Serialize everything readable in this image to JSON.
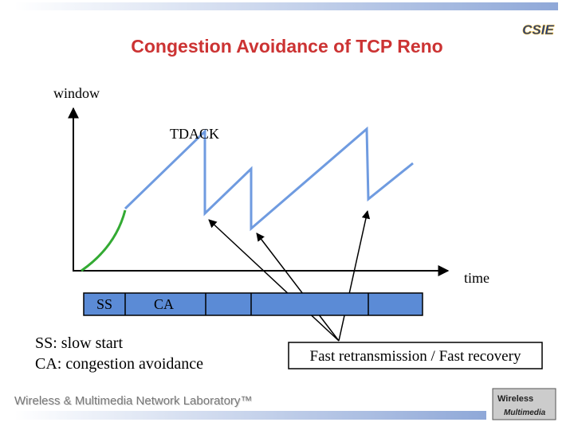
{
  "title": "Congestion Avoidance of TCP Reno",
  "axes": {
    "y_label": "window",
    "x_label": "time"
  },
  "annotation": "TDACK",
  "phase_bar": [
    "SS",
    "CA"
  ],
  "legend": [
    "SS: slow start",
    "CA: congestion avoidance"
  ],
  "callout": "Fast retransmission / Fast recovery",
  "footer": "Wireless & Multimedia Network Laboratory™",
  "logos": [
    "CSIE",
    "Wireless",
    "Multimedia"
  ]
}
